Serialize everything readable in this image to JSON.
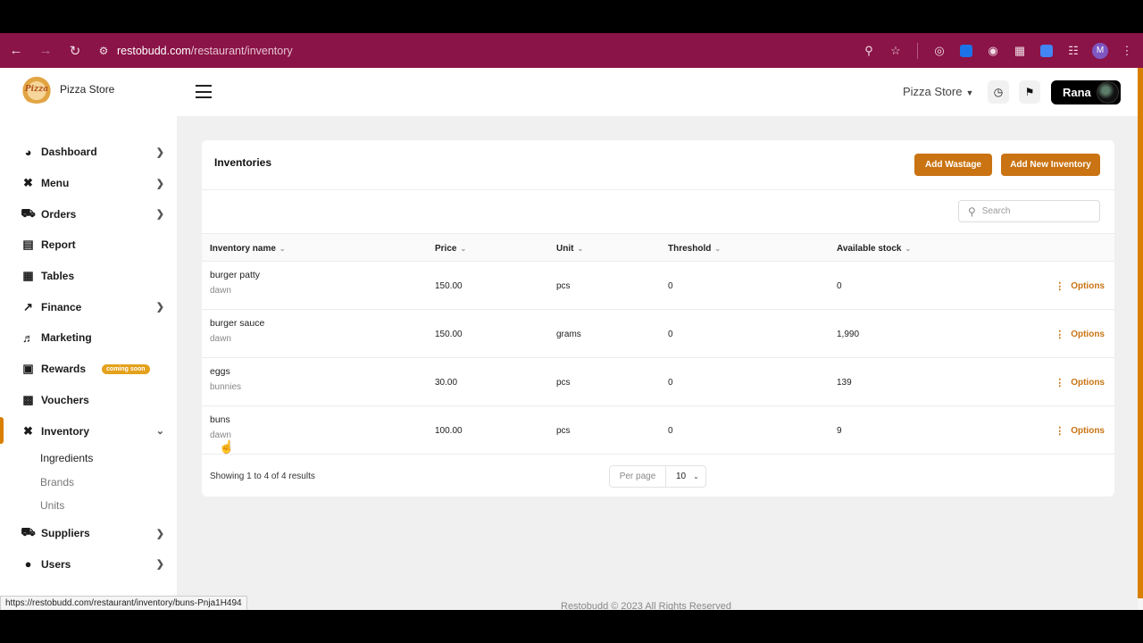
{
  "browser": {
    "url_host": "restobudd.com",
    "url_path": "/restaurant/inventory",
    "profile_initial": "M",
    "status_url": "https://restobudd.com/restaurant/inventory/buns-Pnja1H494"
  },
  "sidebar": {
    "brand_name": "Pizza Store",
    "logo_text": "Pizza",
    "items": [
      {
        "label": "Dashboard",
        "icon": "gauge-icon",
        "chevron": true
      },
      {
        "label": "Menu",
        "icon": "utensils-icon",
        "chevron": true
      },
      {
        "label": "Orders",
        "icon": "cart-icon",
        "chevron": true
      },
      {
        "label": "Report",
        "icon": "chart-icon",
        "chevron": false
      },
      {
        "label": "Tables",
        "icon": "table-icon",
        "chevron": false
      },
      {
        "label": "Finance",
        "icon": "trend-icon",
        "chevron": true
      },
      {
        "label": "Marketing",
        "icon": "megaphone-icon",
        "chevron": false
      },
      {
        "label": "Rewards",
        "icon": "gift-icon",
        "chevron": false,
        "badge": "coming soon"
      },
      {
        "label": "Vouchers",
        "icon": "ticket-icon",
        "chevron": false
      },
      {
        "label": "Inventory",
        "icon": "utensils-icon",
        "chevron": true,
        "expanded": true
      }
    ],
    "inventory_sub": [
      "Ingredients",
      "Brands",
      "Units"
    ],
    "items_after": [
      {
        "label": "Suppliers",
        "icon": "truck-icon",
        "chevron": true
      },
      {
        "label": "Users",
        "icon": "user-icon",
        "chevron": true
      }
    ]
  },
  "header": {
    "store_selector": "Pizza Store",
    "user_name": "Rana"
  },
  "inventories": {
    "title": "Inventories",
    "add_wastage_label": "Add Wastage",
    "add_inventory_label": "Add New Inventory",
    "search_placeholder": "Search",
    "columns": [
      "Inventory name",
      "Price",
      "Unit",
      "Threshold",
      "Available stock"
    ],
    "rows": [
      {
        "name": "burger patty",
        "brand": "dawn",
        "price": "150.00",
        "unit": "pcs",
        "threshold": "0",
        "stock": "0",
        "options": "Options"
      },
      {
        "name": "burger sauce",
        "brand": "dawn",
        "price": "150.00",
        "unit": "grams",
        "threshold": "0",
        "stock": "1,990",
        "options": "Options"
      },
      {
        "name": "eggs",
        "brand": "bunnies",
        "price": "30.00",
        "unit": "pcs",
        "threshold": "0",
        "stock": "139",
        "options": "Options"
      },
      {
        "name": "buns",
        "brand": "dawn",
        "price": "100.00",
        "unit": "pcs",
        "threshold": "0",
        "stock": "9",
        "options": "Options"
      }
    ],
    "showing_text": "Showing 1 to 4 of 4 results",
    "per_page_label": "Per page",
    "per_page_value": "10"
  },
  "footer": {
    "text": "Restobudd © 2023 All Rights Reserved"
  },
  "colors": {
    "accent": "#c97312",
    "chrome": "#8a1347",
    "active_bar": "#d97f00"
  }
}
